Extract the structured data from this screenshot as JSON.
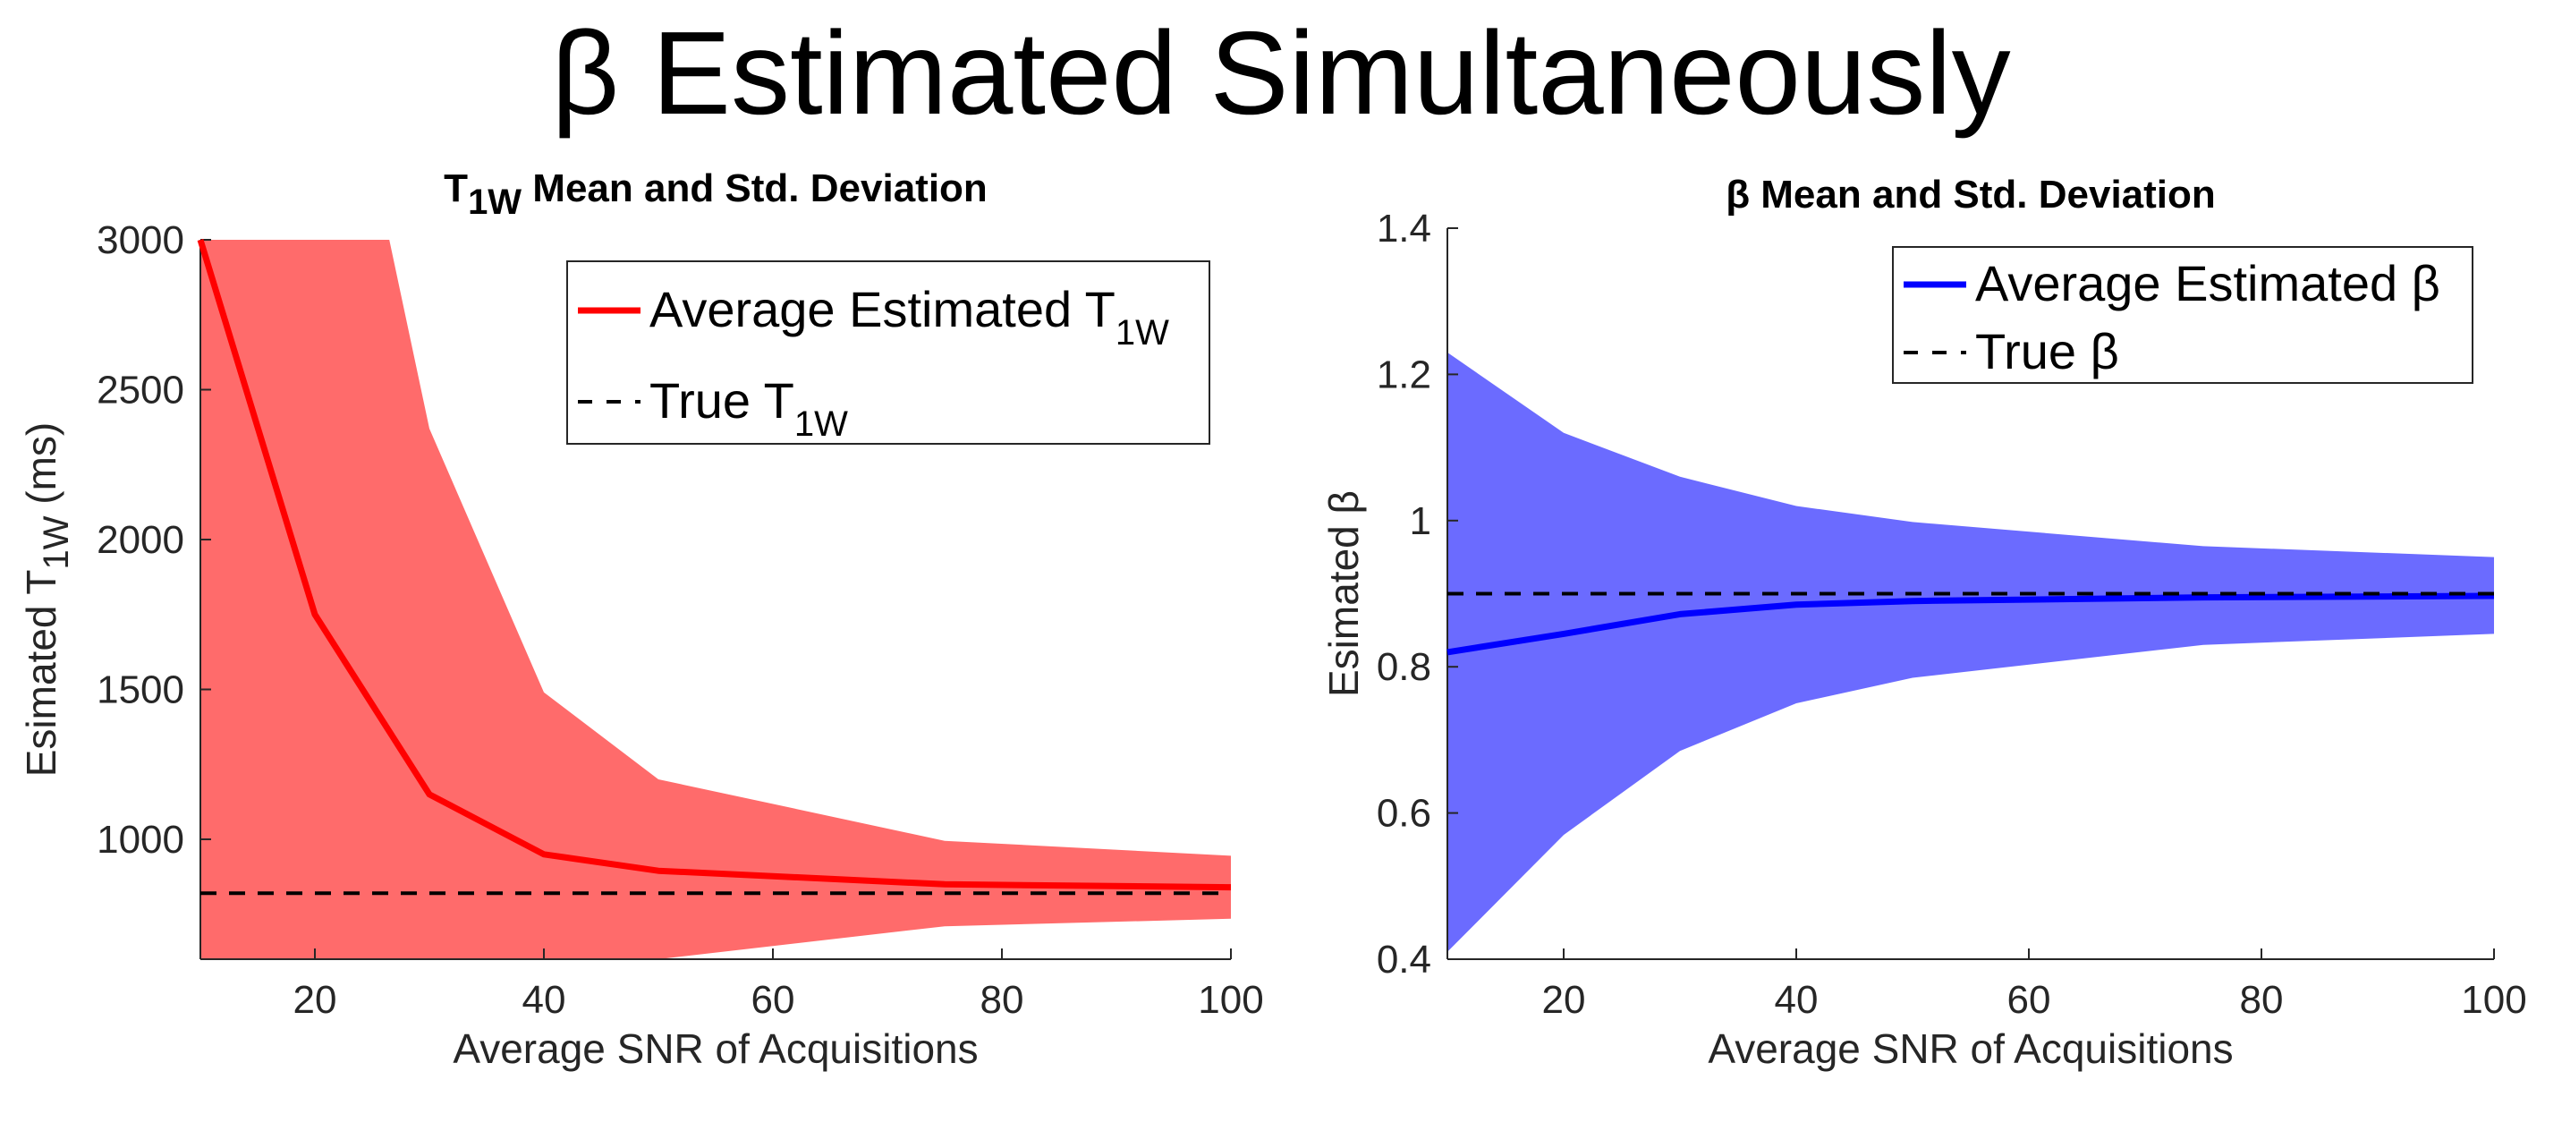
{
  "title": "β Estimated Simultaneously",
  "chart_data": [
    {
      "type": "line",
      "title": "T1W Mean and Std. Deviation",
      "title_main": "T",
      "title_sub": "1W",
      "title_rest": " Mean and Std. Deviation",
      "xlabel": "Average SNR of Acquisitions",
      "ylabel_main": "Esimated T",
      "ylabel_sub": "1W",
      "ylabel_rest": " (ms)",
      "xlim": [
        10,
        100
      ],
      "ylim": [
        600,
        3000
      ],
      "xticks": [
        20,
        40,
        60,
        80,
        100
      ],
      "yticks": [
        1000,
        1500,
        2000,
        2500,
        3000
      ],
      "x": [
        10,
        20,
        30,
        40,
        50,
        75,
        100
      ],
      "series": [
        {
          "name": "Average Estimated T1W",
          "color": "#ff0000",
          "values": [
            3000,
            1750,
            1150,
            950,
            895,
            850,
            840
          ]
        },
        {
          "name": "True T1W",
          "color": "#000000",
          "style": "dashed",
          "values": [
            820,
            820,
            820,
            820,
            820,
            820,
            820
          ]
        }
      ],
      "band": {
        "color": "#ff6b6b",
        "upper": [
          3000,
          3000,
          2370,
          1490,
          1200,
          995,
          945
        ],
        "lower": [
          600,
          600,
          600,
          600,
          600,
          710,
          735
        ],
        "upper_clip_x": 26.5
      },
      "legend": [
        {
          "main": "Average Estimated T",
          "sub": "1W"
        },
        {
          "main": "True T",
          "sub": "1W"
        }
      ],
      "legend_position": "top-right"
    },
    {
      "type": "line",
      "title": "β Mean and Std. Deviation",
      "title_main": "β",
      "title_rest": " Mean and Std. Deviation",
      "xlabel": "Average SNR of Acquisitions",
      "ylabel_main": "Esimated β",
      "xlim": [
        10,
        100
      ],
      "ylim": [
        0.4,
        1.4
      ],
      "xticks": [
        20,
        40,
        60,
        80,
        100
      ],
      "yticks": [
        0.4,
        0.6,
        0.8,
        1,
        1.2,
        1.4
      ],
      "x": [
        10,
        20,
        30,
        40,
        50,
        75,
        100
      ],
      "series": [
        {
          "name": "Average Estimated β",
          "color": "#0000ff",
          "values": [
            0.82,
            0.845,
            0.872,
            0.885,
            0.89,
            0.895,
            0.897
          ]
        },
        {
          "name": "True β",
          "color": "#000000",
          "style": "dashed",
          "values": [
            0.9,
            0.9,
            0.9,
            0.9,
            0.9,
            0.9,
            0.9
          ]
        }
      ],
      "band": {
        "color": "#6b6bff",
        "upper": [
          1.23,
          1.12,
          1.06,
          1.02,
          0.998,
          0.965,
          0.95
        ],
        "lower": [
          0.41,
          0.57,
          0.685,
          0.75,
          0.785,
          0.83,
          0.845
        ]
      },
      "legend": [
        {
          "main": "Average Estimated β"
        },
        {
          "main": "True β"
        }
      ],
      "legend_position": "top-right"
    }
  ]
}
